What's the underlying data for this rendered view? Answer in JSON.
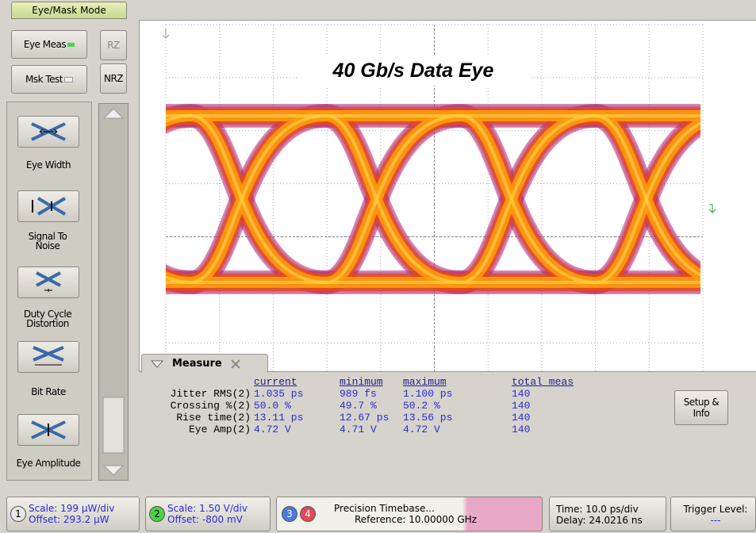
{
  "mode_tab": "Eye/Mask Mode",
  "mode_buttons": [
    "Eye Meas",
    "Msk Test"
  ],
  "format_buttons": [
    "RZ",
    "NRZ"
  ],
  "tools": [
    "Eye Width",
    "Signal To Noise",
    "Duty Cycle Distortion",
    "Bit Rate",
    "Eye Amplitude"
  ],
  "display": {
    "title": "40 Gb/s Data Eye"
  },
  "measure": {
    "title": "Measure",
    "columns": [
      "current",
      "minimum",
      "maximum",
      "total meas"
    ],
    "rows": [
      {
        "label": "Jitter RMS(2)",
        "cells": [
          "1.035 ps",
          "989 fs",
          "1.100 ps",
          "140"
        ]
      },
      {
        "label": "Crossing %(2)",
        "cells": [
          "50.0 %",
          "49.7 %",
          "50.2 %",
          "140"
        ]
      },
      {
        "label": "Rise time(2)",
        "cells": [
          "13.11 ps",
          "12.67 ps",
          "13.56 ps",
          "140"
        ]
      },
      {
        "label": "Eye Amp(2)",
        "cells": [
          "4.72 V",
          "4.71 V",
          "4.72 V",
          "140"
        ]
      }
    ],
    "button": "Setup & Info"
  },
  "status_bar": {
    "channel_1": {
      "number": "1",
      "scale": "Scale: 199 µW/div",
      "offset": "Offset: 293.2 µW"
    },
    "channel_2": {
      "number": "2",
      "scale": "Scale: 1.50 V/div",
      "offset": "Offset: -800 mV"
    },
    "timebase": {
      "channels": [
        "3",
        "4"
      ],
      "title": "Precision Timebase...",
      "reference": "Reference: 10.00000 GHz"
    },
    "time": {
      "scale": "Time: 10.0 ps/div",
      "delay": "Delay: 24.0216 ns"
    },
    "trigger": {
      "label": "Trigger Level:",
      "value": "---"
    }
  }
}
